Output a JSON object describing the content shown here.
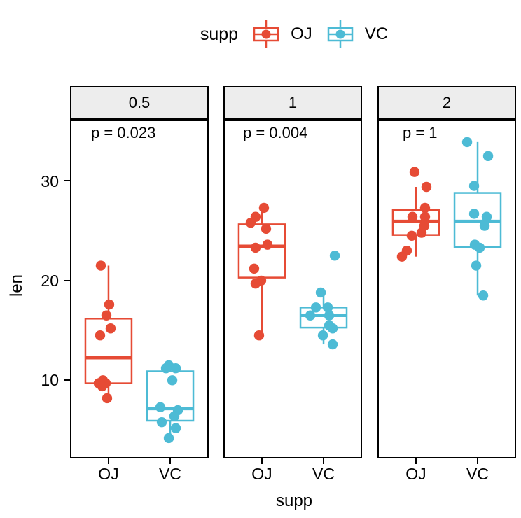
{
  "legend": {
    "title": "supp",
    "entries": [
      {
        "label": "OJ",
        "color": "#E64B35"
      },
      {
        "label": "VC",
        "color": "#4DBBD5"
      }
    ]
  },
  "chart_data": {
    "type": "boxplot",
    "subtype": "faceted-boxplot-with-jitter",
    "facet_variable_values": [
      "0.5",
      "1",
      "2"
    ],
    "categories": [
      "OJ",
      "VC"
    ],
    "xlabel": "supp",
    "ylabel": "len",
    "yticks": [
      10,
      20,
      30
    ],
    "ylim": [
      2.3,
      36.0
    ],
    "grid": "off",
    "legend_position": "top",
    "colors": {
      "OJ": "#E64B35",
      "VC": "#4DBBD5"
    },
    "facets": [
      {
        "label": "0.5",
        "p_label": "p = 0.023",
        "p_x": 28,
        "groups": [
          {
            "name": "OJ",
            "stats": {
              "lo": 8.2,
              "q1": 9.7,
              "med": 12.25,
              "q3": 16.18,
              "hi": 21.5
            },
            "points": [
              [
                21.5,
                -11
              ],
              [
                17.6,
                1
              ],
              [
                16.5,
                -3
              ],
              [
                15.2,
                3
              ],
              [
                14.5,
                -12
              ],
              [
                10.0,
                -8
              ],
              [
                9.7,
                -14
              ],
              [
                9.7,
                -4
              ],
              [
                9.4,
                -9
              ],
              [
                8.2,
                -2
              ]
            ]
          },
          {
            "name": "VC",
            "stats": {
              "lo": 4.2,
              "q1": 5.95,
              "med": 7.15,
              "q3": 10.9,
              "hi": 11.5
            },
            "points": [
              [
                11.5,
                -2
              ],
              [
                11.2,
                8
              ],
              [
                11.2,
                -6
              ],
              [
                10.0,
                3
              ],
              [
                7.3,
                -14
              ],
              [
                7.0,
                11
              ],
              [
                6.4,
                6
              ],
              [
                5.8,
                -12
              ],
              [
                5.2,
                8
              ],
              [
                4.2,
                -2
              ]
            ]
          }
        ]
      },
      {
        "label": "1",
        "p_label": "p = 0.004",
        "p_x": 26,
        "groups": [
          {
            "name": "OJ",
            "stats": {
              "lo": 14.5,
              "q1": 20.3,
              "med": 23.45,
              "q3": 25.65,
              "hi": 27.3
            },
            "points": [
              [
                27.3,
                3
              ],
              [
                26.4,
                -9
              ],
              [
                25.8,
                -16
              ],
              [
                25.2,
                6
              ],
              [
                23.6,
                8
              ],
              [
                23.3,
                -9
              ],
              [
                21.2,
                -11
              ],
              [
                20.0,
                -1
              ],
              [
                19.7,
                -9
              ],
              [
                14.5,
                -4
              ]
            ]
          },
          {
            "name": "VC",
            "stats": {
              "lo": 13.6,
              "q1": 15.28,
              "med": 16.5,
              "q3": 17.3,
              "hi": 18.8
            },
            "points": [
              [
                22.5,
                16
              ],
              [
                18.8,
                -4
              ],
              [
                17.3,
                -11
              ],
              [
                17.3,
                6
              ],
              [
                16.5,
                -19
              ],
              [
                16.5,
                8
              ],
              [
                15.5,
                8
              ],
              [
                15.2,
                13
              ],
              [
                14.5,
                -1
              ],
              [
                13.6,
                13
              ]
            ]
          }
        ]
      },
      {
        "label": "2",
        "p_label": "p = 1",
        "p_x": 34,
        "groups": [
          {
            "name": "OJ",
            "stats": {
              "lo": 22.4,
              "q1": 24.58,
              "med": 25.95,
              "q3": 27.08,
              "hi": 29.4
            },
            "points": [
              [
                30.9,
                -2
              ],
              [
                29.4,
                15
              ],
              [
                27.3,
                13
              ],
              [
                26.4,
                -5
              ],
              [
                26.4,
                13
              ],
              [
                25.5,
                12
              ],
              [
                24.8,
                8
              ],
              [
                24.5,
                -6
              ],
              [
                23.0,
                -13
              ],
              [
                22.4,
                -20
              ]
            ]
          },
          {
            "name": "VC",
            "stats": {
              "lo": 18.5,
              "q1": 23.38,
              "med": 25.95,
              "q3": 28.8,
              "hi": 33.9
            },
            "points": [
              [
                33.9,
                -15
              ],
              [
                32.5,
                15
              ],
              [
                29.5,
                -5
              ],
              [
                26.7,
                -5
              ],
              [
                26.4,
                13
              ],
              [
                25.5,
                10
              ],
              [
                23.6,
                -4
              ],
              [
                23.3,
                3
              ],
              [
                21.5,
                -2
              ],
              [
                18.5,
                8
              ]
            ]
          }
        ]
      }
    ]
  }
}
